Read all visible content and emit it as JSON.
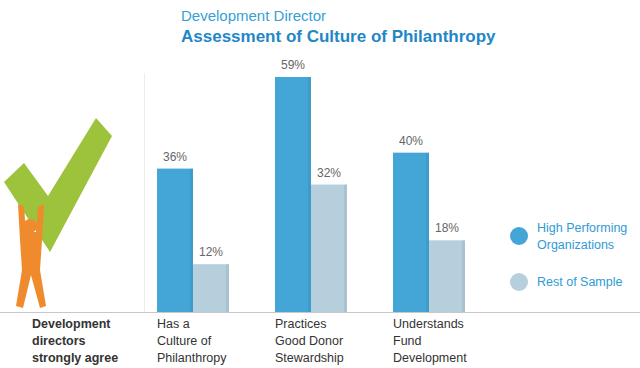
{
  "chart_data": {
    "type": "bar",
    "subtitle": "Development Director",
    "title": "Assessment of Culture of Philanthropy",
    "annotations": [
      "Development directors strongly agree"
    ],
    "categories": [
      "Has a Culture of Philanthropy",
      "Practices Good Donor Stewardship",
      "Understands Fund Development"
    ],
    "series": [
      {
        "name": "High Performing Organizations",
        "color": "#43a6d6",
        "values": [
          36,
          59,
          40
        ],
        "value_labels": [
          "36%",
          "59%",
          "40%"
        ]
      },
      {
        "name": "Rest of Sample",
        "color": "#b5cfdc",
        "values": [
          12,
          32,
          18
        ],
        "value_labels": [
          "12%",
          "32%",
          "18%"
        ]
      }
    ],
    "ylim": [
      0,
      60
    ],
    "data_labels": true,
    "tick_labels": "x",
    "legend": "right",
    "grid": false
  }
}
